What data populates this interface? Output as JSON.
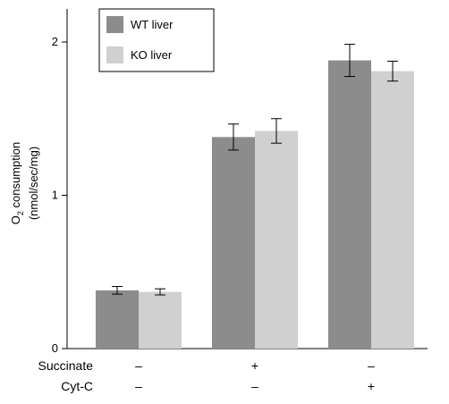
{
  "chart_data": {
    "type": "bar",
    "ylabel_line1_main": "O",
    "ylabel_line1_sub": "2",
    "ylabel_line1_rest": " consumption",
    "ylabel_line2": "(nmol/sec/mg)",
    "ylim": [
      0,
      2.2
    ],
    "yticks": [
      {
        "value": 0,
        "label": "0"
      },
      {
        "value": 1,
        "label": "1"
      },
      {
        "value": 2,
        "label": "2"
      }
    ],
    "groups": 3,
    "series": [
      {
        "name": "WT liver",
        "color": "#8c8c8c",
        "values": [
          0.38,
          1.38,
          1.88
        ],
        "errors": [
          0.025,
          0.085,
          0.105
        ]
      },
      {
        "name": "KO liver",
        "color": "#d0d0d0",
        "values": [
          0.37,
          1.42,
          1.81
        ],
        "errors": [
          0.02,
          0.08,
          0.065
        ]
      }
    ],
    "conditions": [
      {
        "name": "Succinate",
        "values": [
          "–",
          "+",
          "–"
        ]
      },
      {
        "name": "Cyt-C",
        "values": [
          "–",
          "–",
          "+"
        ]
      }
    ],
    "legend_position": "top-left",
    "grid": false
  }
}
